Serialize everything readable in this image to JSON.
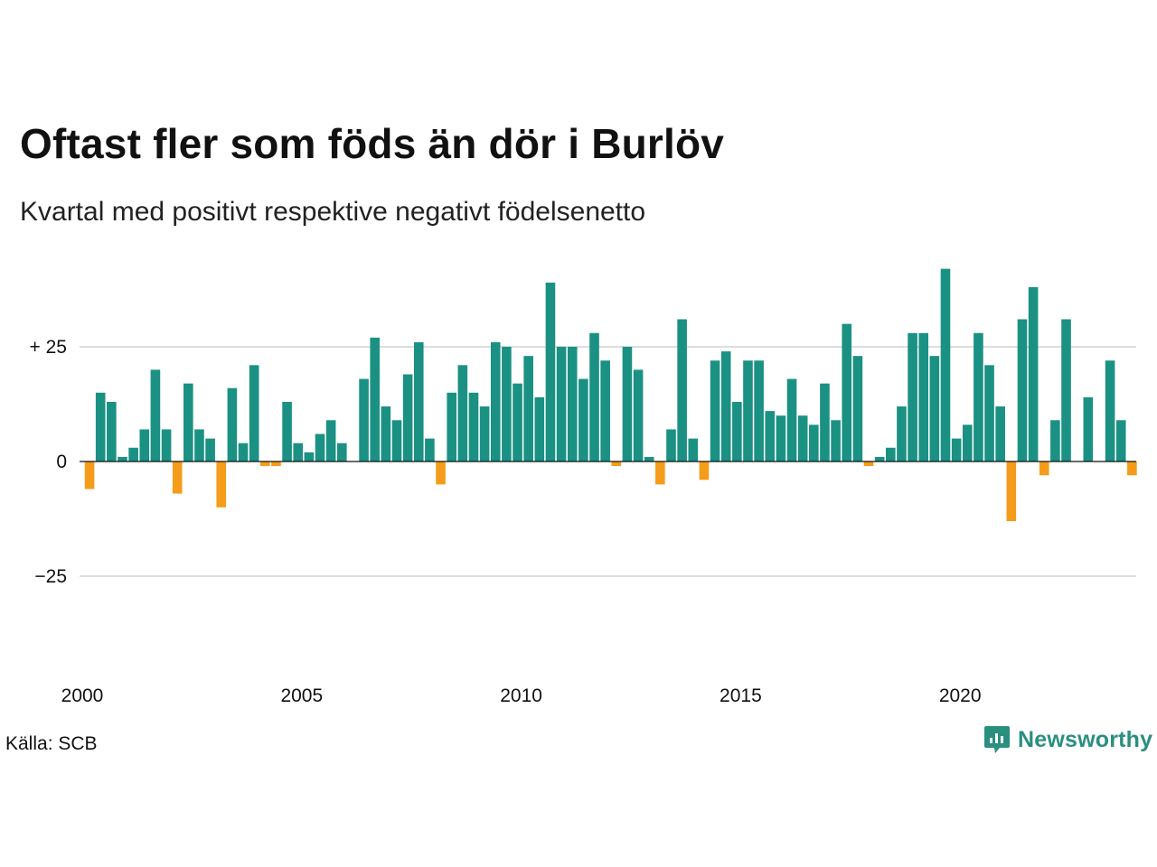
{
  "title": "Oftast fler som föds än dör i Burlöv",
  "subtitle": "Kvartal med positivt respektive negativt födelsenetto",
  "source": "Källa: SCB",
  "brand": "Newsworthy",
  "colors": {
    "positive": "#1a9183",
    "negative": "#f59c1a",
    "grid": "#dddddd",
    "brand": "#2a8f7f"
  },
  "chart_data": {
    "type": "bar",
    "x_start_year": 2000,
    "periods_per_year": 4,
    "ylim": [
      -45,
      45
    ],
    "y_ticks": [
      25,
      0,
      -25
    ],
    "y_tick_labels": [
      "+ 25",
      "0",
      "−25"
    ],
    "x_ticks": [
      "2000",
      "2005",
      "2010",
      "2015",
      "2020"
    ],
    "grid": true,
    "values": [
      -6,
      15,
      13,
      1,
      3,
      7,
      20,
      7,
      -7,
      17,
      7,
      5,
      -10,
      16,
      4,
      21,
      -1,
      -1,
      13,
      4,
      2,
      6,
      9,
      4,
      0,
      18,
      27,
      12,
      9,
      19,
      26,
      5,
      -5,
      15,
      21,
      15,
      12,
      26,
      25,
      17,
      23,
      14,
      39,
      25,
      25,
      18,
      28,
      22,
      -1,
      25,
      20,
      1,
      -5,
      7,
      31,
      5,
      -4,
      22,
      24,
      13,
      22,
      22,
      11,
      10,
      18,
      10,
      8,
      17,
      9,
      30,
      23,
      -1,
      1,
      3,
      12,
      28,
      28,
      23,
      42,
      5,
      8,
      28,
      21,
      12,
      -13,
      31,
      38,
      -3,
      9,
      31,
      0,
      14,
      0,
      22,
      9,
      -3
    ]
  }
}
